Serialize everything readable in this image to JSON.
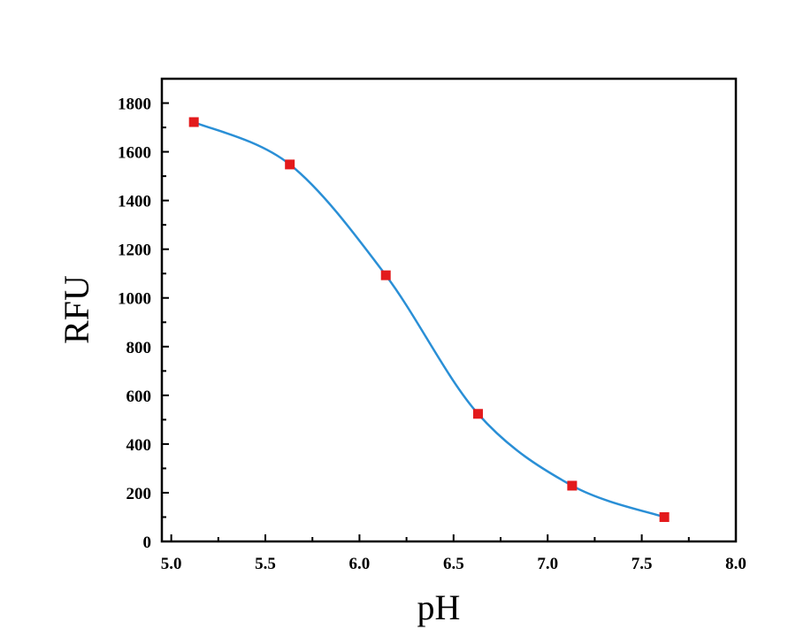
{
  "chart_data": {
    "type": "line",
    "title": "",
    "xlabel": "pH",
    "ylabel": "RFU",
    "xlim": [
      4.95,
      8.0
    ],
    "ylim": [
      0,
      1900
    ],
    "x_ticks": [
      "5.0",
      "5.5",
      "6.0",
      "6.5",
      "7.0",
      "7.5",
      "8.0"
    ],
    "y_ticks": [
      "0",
      "200",
      "400",
      "600",
      "800",
      "1000",
      "1200",
      "1400",
      "1600",
      "1800"
    ],
    "grid": false,
    "legend": "none",
    "series": [
      {
        "marker": "square",
        "marker_color": "#e31a1c",
        "line_color": "#2a8fd6",
        "line_style": "smooth-fit",
        "x": [
          5.12,
          5.63,
          6.14,
          6.63,
          7.13,
          7.62
        ],
        "y": [
          1722,
          1548,
          1093,
          524,
          229,
          100
        ]
      }
    ]
  }
}
